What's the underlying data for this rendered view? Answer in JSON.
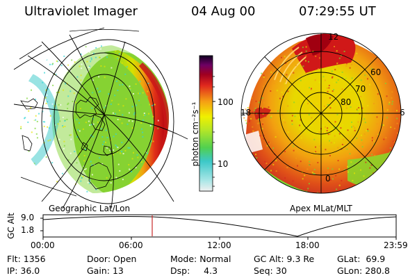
{
  "header": {
    "title": "Ultraviolet Imager",
    "date": "04 Aug 00",
    "time": "07:29:55 UT"
  },
  "colorbar": {
    "label": "photon cm⁻²s⁻¹",
    "ticks": [
      "100",
      "10"
    ]
  },
  "left_panel": {
    "caption": "Geographic Lat/Lon"
  },
  "right_panel": {
    "caption": "Apex MLat/MLT",
    "lat_labels": [
      "60",
      "70",
      "80"
    ],
    "mlt_labels": {
      "top": "12",
      "left": "18",
      "right": "6",
      "bottom": "0"
    }
  },
  "altitude_plot": {
    "ylabel": "GC Alt",
    "yticks": [
      "9.0",
      "1.8"
    ],
    "xticks": [
      "00:00",
      "06:00",
      "12:00",
      "18:00",
      "23:59"
    ]
  },
  "info": {
    "row1": [
      {
        "label": "Flt:",
        "value": "1356"
      },
      {
        "label": "Door:",
        "value": "Open"
      },
      {
        "label": "Mode:",
        "value": "Normal"
      },
      {
        "label": "GC Alt:",
        "value": "9.3 Re"
      },
      {
        "label": "GLat:",
        "value": "69.9"
      }
    ],
    "row2": [
      {
        "label": "IP:",
        "value": "36.0"
      },
      {
        "label": "Gain:",
        "value": "13"
      },
      {
        "label": "Dsp:",
        "value": "4.3"
      },
      {
        "label": "Seq:",
        "value": "30"
      },
      {
        "label": "GLon:",
        "value": "280.8"
      }
    ]
  },
  "colors": {
    "cyan": "#33d6d6",
    "green": "#7ad632",
    "yellow": "#e6e600",
    "orange": "#f29a14",
    "red": "#d7281e",
    "darkred": "#a00000",
    "marker": "#c82828"
  }
}
